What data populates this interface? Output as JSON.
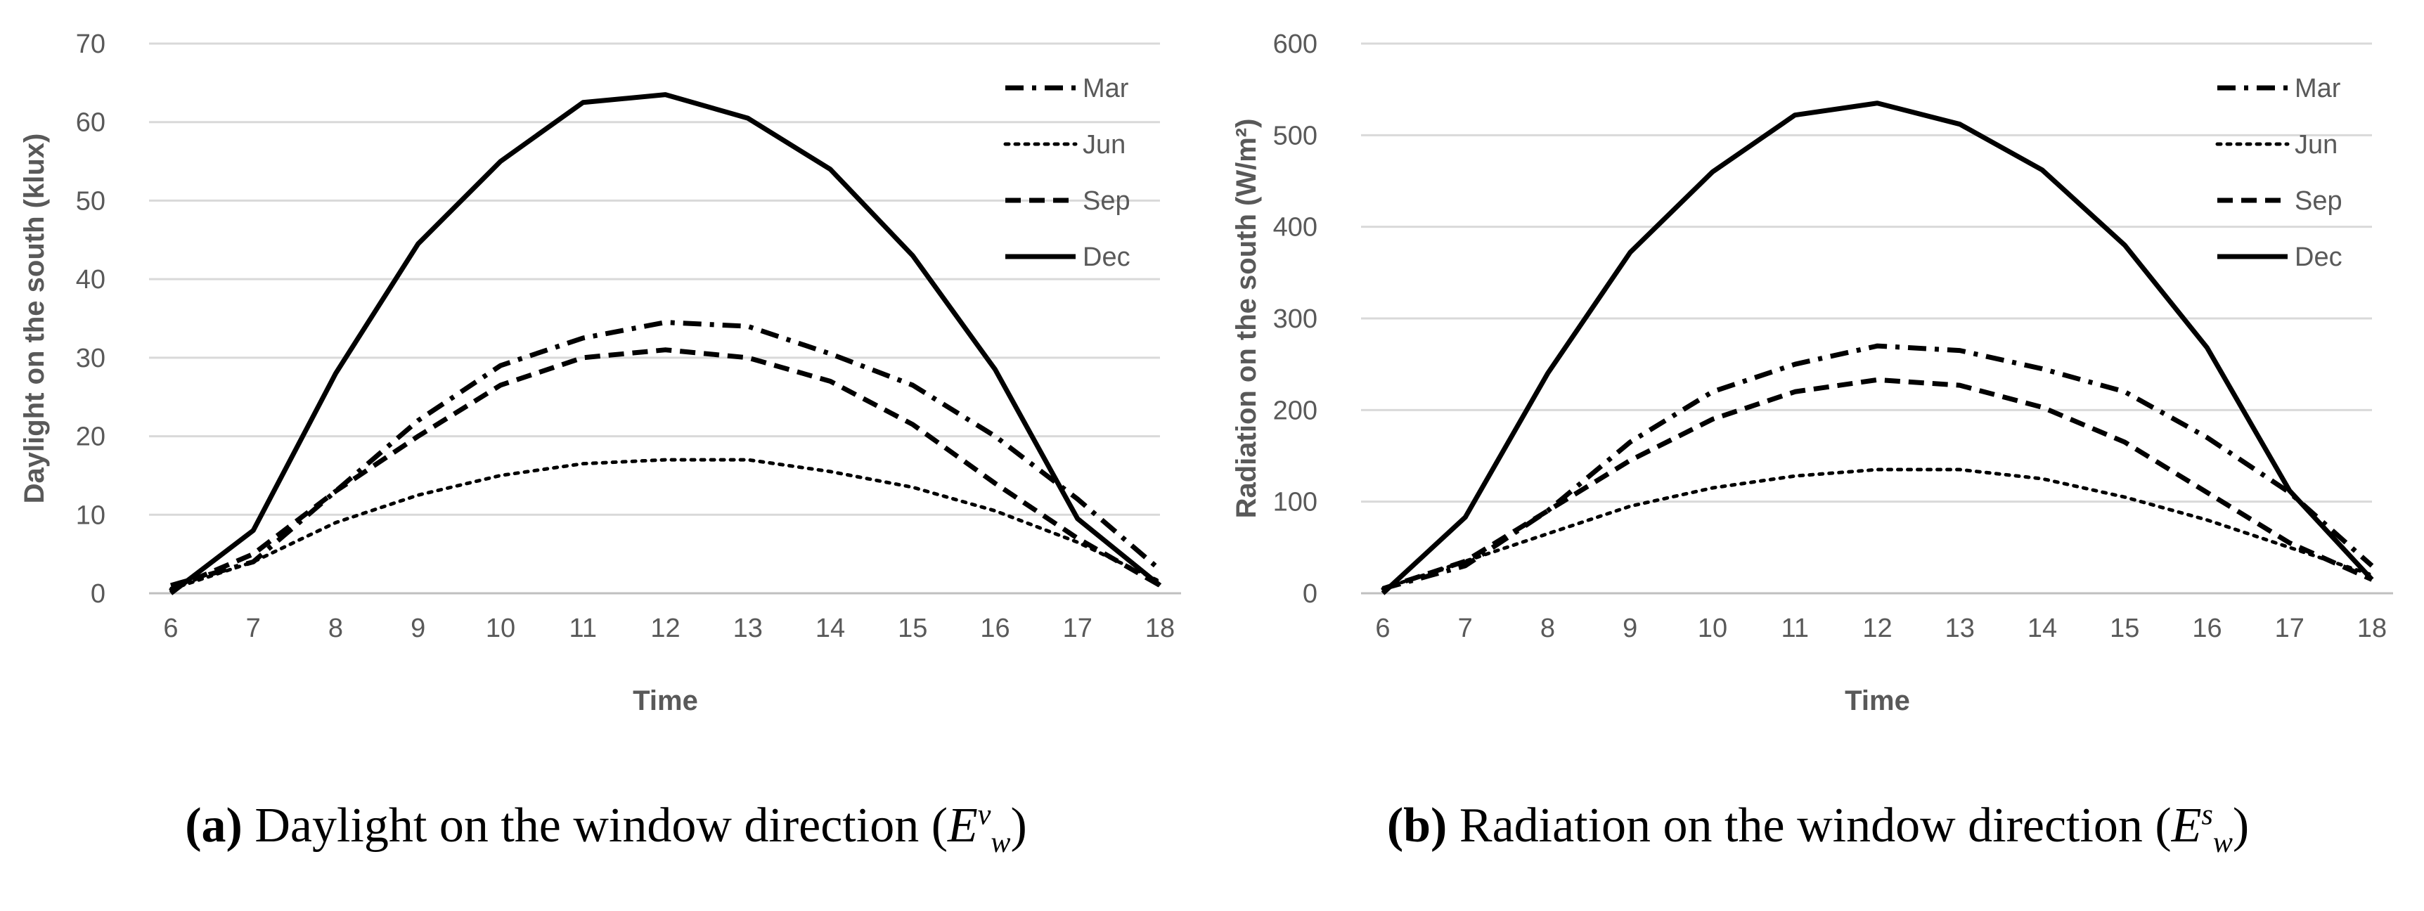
{
  "chart_data": [
    {
      "type": "line",
      "id": "a",
      "xlabel": "Time",
      "ylabel": "Daylight  on the south (klux)",
      "x": [
        6,
        7,
        8,
        9,
        10,
        11,
        12,
        13,
        14,
        15,
        16,
        17,
        18
      ],
      "xlim": [
        6,
        18
      ],
      "ylim": [
        0,
        70
      ],
      "yticks": [
        0,
        10,
        20,
        30,
        40,
        50,
        60,
        70
      ],
      "grid": true,
      "legend_position": "top-right",
      "series": [
        {
          "name": "Mar",
          "style": "dash-dot",
          "values": [
            1,
            4,
            13,
            22,
            29,
            32.5,
            34.5,
            34,
            30.5,
            26.5,
            20,
            12,
            3
          ]
        },
        {
          "name": "Jun",
          "style": "dotted",
          "values": [
            0.5,
            4,
            9,
            12.5,
            15,
            16.5,
            17,
            17,
            15.5,
            13.5,
            10.5,
            6.5,
            1.5
          ]
        },
        {
          "name": "Sep",
          "style": "dashed",
          "values": [
            0.5,
            5,
            13,
            20,
            26.5,
            30,
            31,
            30,
            27,
            21.5,
            14,
            7,
            1
          ]
        },
        {
          "name": "Dec",
          "style": "solid",
          "values": [
            0,
            8,
            28,
            44.5,
            55,
            62.5,
            63.5,
            60.5,
            54,
            43,
            28.5,
            9.5,
            1
          ]
        }
      ],
      "caption": {
        "label": "(a)",
        "text": " Daylight on the window direction (",
        "symbol": "E",
        "sup": "v",
        "sub": "w",
        "close": ")"
      }
    },
    {
      "type": "line",
      "id": "b",
      "xlabel": "Time",
      "ylabel": "Radiation  on the south (W/m²)",
      "x": [
        6,
        7,
        8,
        9,
        10,
        11,
        12,
        13,
        14,
        15,
        16,
        17,
        18
      ],
      "xlim": [
        6,
        18
      ],
      "ylim": [
        0,
        600
      ],
      "yticks": [
        0,
        100,
        200,
        300,
        400,
        500,
        600
      ],
      "grid": true,
      "legend_position": "top-right",
      "series": [
        {
          "name": "Mar",
          "style": "dash-dot",
          "values": [
            5,
            30,
            90,
            165,
            220,
            250,
            270,
            265,
            245,
            220,
            170,
            110,
            30
          ]
        },
        {
          "name": "Jun",
          "style": "dotted",
          "values": [
            5,
            35,
            65,
            95,
            115,
            128,
            135,
            135,
            125,
            105,
            80,
            50,
            20
          ]
        },
        {
          "name": "Sep",
          "style": "dashed",
          "values": [
            5,
            35,
            90,
            145,
            190,
            220,
            233,
            227,
            203,
            165,
            110,
            55,
            15
          ]
        },
        {
          "name": "Dec",
          "style": "solid",
          "values": [
            0,
            83,
            240,
            372,
            460,
            522,
            535,
            512,
            462,
            380,
            268,
            112,
            15
          ]
        }
      ],
      "caption": {
        "label": "(b)",
        "text": " Radiation on the window direction (",
        "symbol": "E",
        "sup": "s",
        "sub": "w",
        "close": ")"
      }
    }
  ]
}
